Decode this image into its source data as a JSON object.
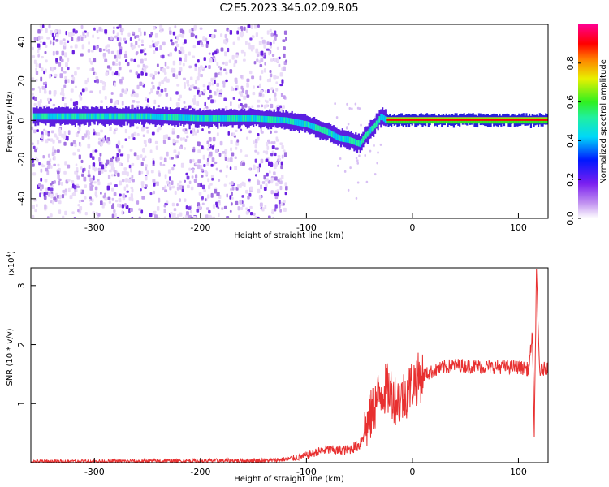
{
  "title": "C2E5.2023.345.02.09.R05",
  "colors": {
    "accent": "#e83030",
    "spectrum": [
      "#ffffff",
      "#e8d8f8",
      "#a070e0",
      "#5a1ee0",
      "#0a10f0",
      "#00ccf0",
      "#20f0a0",
      "#30f020",
      "#e8f000",
      "#ff8000",
      "#ff0000",
      "#ff0090"
    ]
  },
  "chart_data": [
    {
      "type": "heatmap",
      "title": "C2E5.2023.345.02.09.R05",
      "xlabel": "Height of straight line (km)",
      "ylabel": "Frequency (Hz)",
      "xlim": [
        -360,
        128
      ],
      "ylim": [
        -50,
        49
      ],
      "xticks": [
        "-300",
        "-200",
        "-100",
        "0",
        "100"
      ],
      "yticks": [
        "-40",
        "-20",
        "0",
        "20",
        "40"
      ],
      "colorbar": {
        "label": "Normalized spectral amplitude",
        "range": [
          0.0,
          1.0
        ],
        "ticks": [
          "0.0",
          "0.2",
          "0.4",
          "0.6",
          "0.8"
        ]
      },
      "ridge": {
        "x": [
          -355,
          -300,
          -250,
          -200,
          -150,
          -120,
          -100,
          -90,
          -80,
          -70,
          -60,
          -50,
          -45,
          -40,
          -35,
          -30,
          -25,
          -20,
          0,
          50,
          100,
          110,
          115,
          120,
          125
        ],
        "y": [
          2,
          2,
          2,
          1,
          1,
          0,
          -2,
          -4,
          -6,
          -9,
          -10,
          -12,
          -8,
          -5,
          -2,
          2,
          0,
          0,
          0,
          0,
          0,
          0,
          0,
          0,
          0
        ]
      },
      "grid": false
    },
    {
      "type": "line",
      "xlabel": "Height of straight line (km)",
      "ylabel": "SNR (10 * v/v)",
      "yscale_label": "(x10",
      "yscale_exp": "4",
      "xlim": [
        -360,
        128
      ],
      "ylim": [
        0,
        3.3
      ],
      "xticks": [
        "-300",
        "-200",
        "-100",
        "0",
        "100"
      ],
      "yticks": [
        "1",
        "2",
        "3"
      ],
      "series": [
        {
          "x": [
            -360,
            -300,
            -200,
            -130,
            -110,
            -100,
            -90,
            -80,
            -70,
            -60,
            -50,
            -45,
            -40,
            -35,
            -30,
            -25,
            -20,
            -15,
            -10,
            -5,
            0,
            10,
            20,
            30,
            40,
            60,
            80,
            100,
            110,
            113,
            115,
            117,
            120,
            128
          ],
          "y": [
            0.02,
            0.02,
            0.03,
            0.04,
            0.08,
            0.12,
            0.18,
            0.22,
            0.2,
            0.22,
            0.3,
            0.55,
            0.75,
            1.0,
            1.2,
            1.25,
            1.2,
            1.05,
            1.1,
            1.2,
            1.35,
            1.48,
            1.55,
            1.62,
            1.65,
            1.63,
            1.62,
            1.62,
            1.58,
            2.2,
            0.5,
            3.2,
            1.55,
            1.62
          ]
        }
      ],
      "grid": false
    }
  ]
}
